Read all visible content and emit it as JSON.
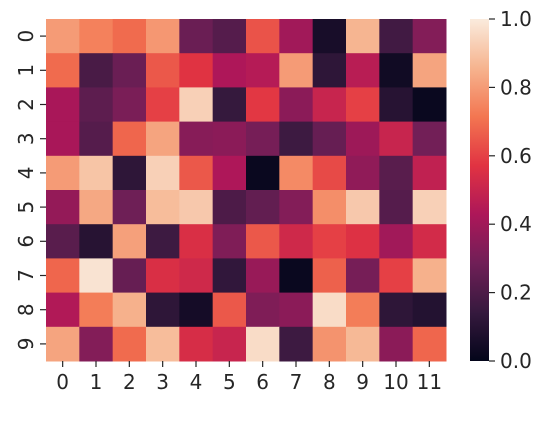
{
  "chart_data": {
    "type": "heatmap",
    "x_categories": [
      "0",
      "1",
      "2",
      "3",
      "4",
      "5",
      "6",
      "7",
      "8",
      "9",
      "10",
      "11"
    ],
    "y_categories": [
      "0",
      "1",
      "2",
      "3",
      "4",
      "5",
      "6",
      "7",
      "8",
      "9"
    ],
    "values": [
      [
        0.8,
        0.74,
        0.69,
        0.79,
        0.27,
        0.22,
        0.64,
        0.4,
        0.06,
        0.86,
        0.17,
        0.33
      ],
      [
        0.69,
        0.19,
        0.27,
        0.65,
        0.57,
        0.43,
        0.45,
        0.8,
        0.12,
        0.46,
        0.04,
        0.82
      ],
      [
        0.42,
        0.24,
        0.31,
        0.6,
        0.93,
        0.14,
        0.58,
        0.35,
        0.5,
        0.6,
        0.1,
        0.02
      ],
      [
        0.42,
        0.22,
        0.68,
        0.82,
        0.34,
        0.35,
        0.3,
        0.16,
        0.26,
        0.39,
        0.5,
        0.29
      ],
      [
        0.8,
        0.9,
        0.12,
        0.93,
        0.65,
        0.43,
        0.02,
        0.76,
        0.62,
        0.36,
        0.23,
        0.48
      ],
      [
        0.37,
        0.83,
        0.28,
        0.88,
        0.91,
        0.2,
        0.25,
        0.33,
        0.77,
        0.91,
        0.22,
        0.93
      ],
      [
        0.23,
        0.1,
        0.81,
        0.16,
        0.55,
        0.32,
        0.65,
        0.52,
        0.6,
        0.56,
        0.4,
        0.53
      ],
      [
        0.68,
        0.98,
        0.26,
        0.55,
        0.52,
        0.13,
        0.38,
        0.02,
        0.67,
        0.3,
        0.6,
        0.85
      ],
      [
        0.44,
        0.73,
        0.85,
        0.12,
        0.05,
        0.65,
        0.32,
        0.35,
        0.96,
        0.73,
        0.12,
        0.09
      ],
      [
        0.82,
        0.33,
        0.69,
        0.88,
        0.54,
        0.5,
        0.96,
        0.16,
        0.78,
        0.87,
        0.35,
        0.68
      ]
    ],
    "colorbar": {
      "min": 0.0,
      "max": 1.0,
      "ticks": [
        "0.0",
        "0.2",
        "0.4",
        "0.6",
        "0.8",
        "1.0"
      ],
      "colormap": "rocket",
      "colormap_stops": [
        "#03051a",
        "#36193e",
        "#701f57",
        "#ad1759",
        "#e13342",
        "#f37651",
        "#f6b48f",
        "#faebdd"
      ]
    },
    "title": "",
    "xlabel": "",
    "ylabel": ""
  }
}
